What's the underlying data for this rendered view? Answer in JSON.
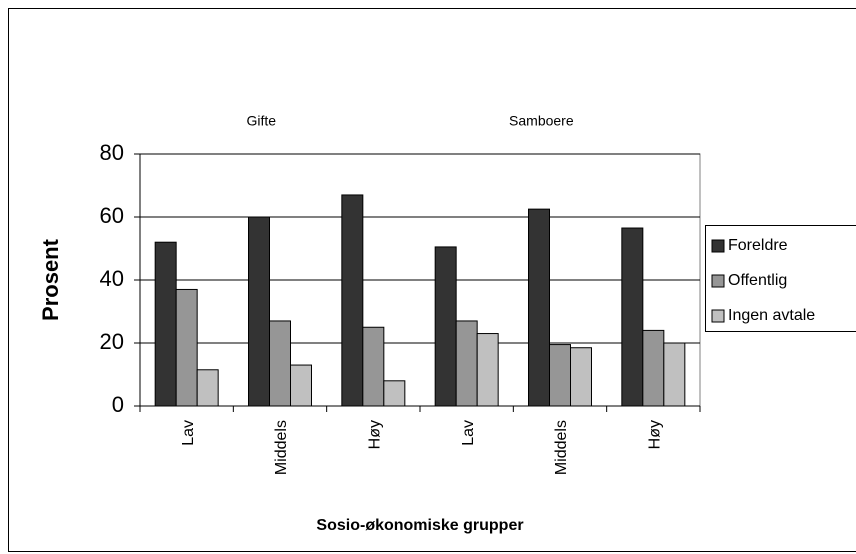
{
  "chart_data": {
    "type": "bar",
    "group_labels": [
      "Gifte",
      "Samboere"
    ],
    "categories": [
      "Lav",
      "Middels",
      "Høy",
      "Lav",
      "Middels",
      "Høy"
    ],
    "series": [
      {
        "name": "Foreldre",
        "color": "#333333",
        "values": [
          52,
          60,
          67,
          50.5,
          62.5,
          56.5
        ]
      },
      {
        "name": "Offentlig",
        "color": "#969696",
        "values": [
          37,
          27,
          25,
          27,
          19.5,
          24
        ]
      },
      {
        "name": "Ingen avtale",
        "color": "#c0c0c0",
        "values": [
          11.5,
          13,
          8,
          23,
          18.5,
          20
        ]
      }
    ],
    "ylabel": "Prosent",
    "xlabel": "Sosio-økonomiske grupper",
    "ylim": [
      0,
      80
    ],
    "yticks": [
      0,
      20,
      40,
      60,
      80
    ],
    "grid": true,
    "legend": "right"
  }
}
